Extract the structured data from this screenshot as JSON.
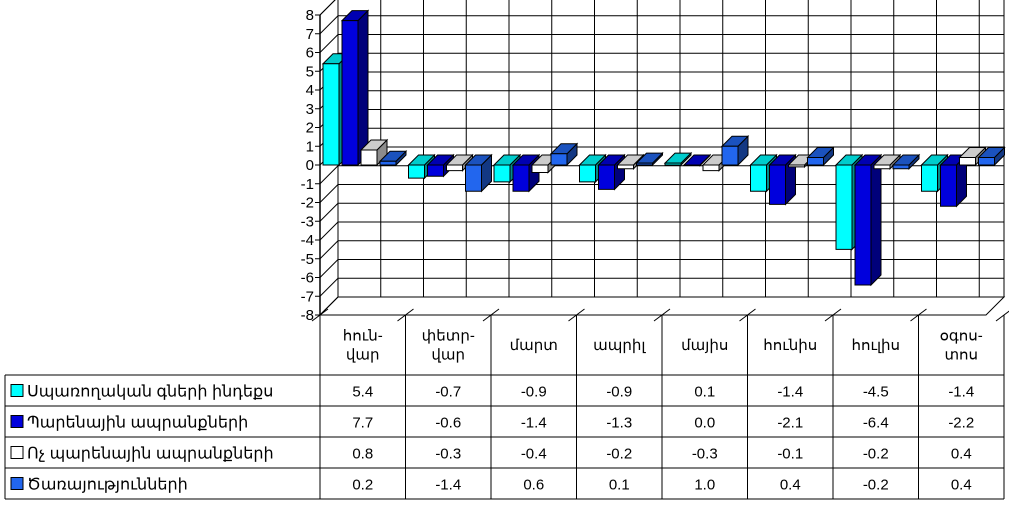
{
  "chart_data": {
    "type": "bar",
    "title": "",
    "xlabel": "",
    "ylabel": "",
    "ylim": [
      -8,
      8
    ],
    "yticks": [
      8,
      7,
      6,
      5,
      4,
      3,
      2,
      1,
      0,
      -1,
      -2,
      -3,
      -4,
      -5,
      -6,
      -7,
      -8
    ],
    "grid": true,
    "legend": "data-table",
    "categories": [
      "հուն-վար",
      "փետր-վար",
      "մարտ",
      "ապրիլ",
      "մայիս",
      "հունիս",
      "հուլիս",
      "օգոս-տոս"
    ],
    "category_lines": [
      [
        "հուն-",
        "վար"
      ],
      [
        "փետր-",
        "վար"
      ],
      [
        "մարտ"
      ],
      [
        "ապրիլ"
      ],
      [
        "մայիս"
      ],
      [
        "հունիս"
      ],
      [
        "հուլիս"
      ],
      [
        "օգոս-",
        "տոս"
      ]
    ],
    "series": [
      {
        "name": "Սպառողական գների ինդեքս",
        "color": "#00ffff",
        "values": [
          5.4,
          -0.7,
          -0.9,
          -0.9,
          0.1,
          -1.4,
          -4.5,
          -1.4
        ]
      },
      {
        "name": "Պարենային ապրանքների",
        "color": "#0000dd",
        "values": [
          7.7,
          -0.6,
          -1.4,
          -1.3,
          0.0,
          -2.1,
          -6.4,
          -2.2
        ]
      },
      {
        "name": "Ոչ պարենային  ապրանքների",
        "color": "#ffffff",
        "values": [
          0.8,
          -0.3,
          -0.4,
          -0.2,
          -0.3,
          -0.1,
          -0.2,
          0.4
        ]
      },
      {
        "name": "Ծառայությունների",
        "color": "#2266ee",
        "values": [
          0.2,
          -1.4,
          0.6,
          0.1,
          1.0,
          0.4,
          -0.2,
          0.4
        ]
      }
    ],
    "table_text": {
      "s0": [
        "5.4",
        "-0.7",
        "-0.9",
        "-0.9",
        "0.1",
        "-1.4",
        "-4.5",
        "-1.4"
      ],
      "s1": [
        "7.7",
        "-0.6",
        "-1.4",
        "-1.3",
        "0.0",
        "-2.1",
        "-6.4",
        "-2.2"
      ],
      "s2": [
        "0.8",
        "-0.3",
        "-0.4",
        "-0.2",
        "-0.3",
        "-0.1",
        "-0.2",
        "0.4"
      ],
      "s3": [
        "0.2",
        "-1.4",
        "0.6",
        "0.1",
        "1.0",
        "0.4",
        "-0.2",
        "0.4"
      ]
    }
  }
}
